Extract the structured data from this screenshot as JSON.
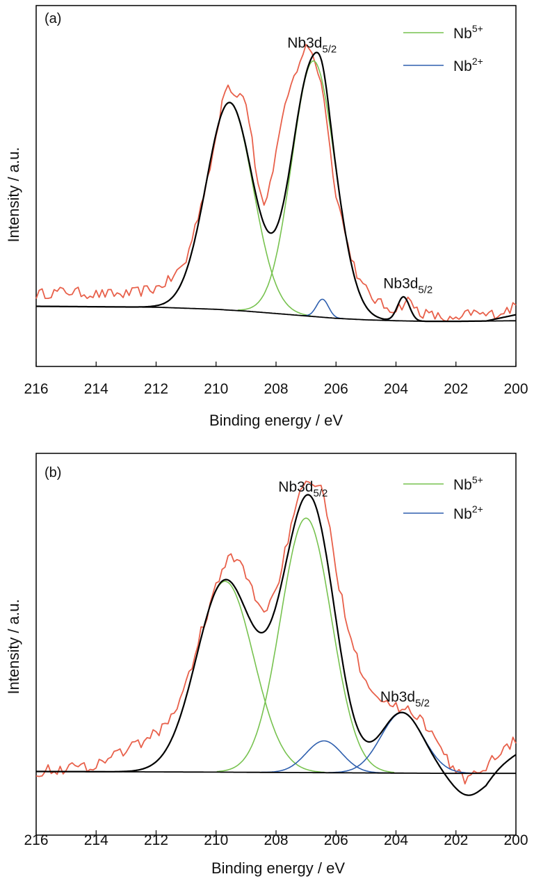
{
  "chart_data": [
    {
      "type": "line",
      "panel_label": "(a)",
      "xlabel": "Binding energy / eV",
      "ylabel": "Intensity / a.u.",
      "xlim": [
        216,
        200
      ],
      "x_reversed": true,
      "ylim": [
        -0.2,
        1.0
      ],
      "y_ticks_shown": false,
      "x_ticks": [
        216,
        214,
        212,
        210,
        208,
        206,
        204,
        202,
        200
      ],
      "grid": false,
      "legend": {
        "position": "top-right",
        "entries": [
          {
            "base": "Nb",
            "sup": "5+",
            "color": "#77c24f"
          },
          {
            "base": "Nb",
            "sup": "2+",
            "color": "#2e5fae"
          }
        ]
      },
      "annotations": [
        {
          "base": "Nb3d",
          "sub": "5/2",
          "x": 206.8,
          "y": 0.86
        },
        {
          "base": "Nb3d",
          "sub": "5/2",
          "x": 203.6,
          "y": 0.06
        }
      ],
      "background": {
        "x": [
          216,
          212,
          210,
          209,
          208,
          207,
          206,
          205,
          204,
          203,
          202,
          200
        ],
        "y": [
          0.0,
          -0.003,
          -0.01,
          -0.016,
          -0.024,
          -0.032,
          -0.04,
          -0.045,
          -0.048,
          -0.05,
          -0.05,
          -0.048
        ]
      },
      "peaks": [
        {
          "name": "Nb5+",
          "color": "#77c24f",
          "center": 209.55,
          "height": 0.69,
          "width": 0.78
        },
        {
          "name": "Nb5+",
          "color": "#77c24f",
          "center": 206.75,
          "height": 0.85,
          "width": 0.72
        },
        {
          "name": "Nb2+",
          "color": "#2e5fae",
          "center": 206.45,
          "height": 0.06,
          "width": 0.2
        },
        {
          "name": "Nb2+",
          "color": "#2e5fae",
          "center": 203.75,
          "height": 0.08,
          "width": 0.2
        }
      ],
      "experimental": {
        "color": "#e8604a",
        "noise": 0.018,
        "tail_rise": 0.02,
        "x": [
          216,
          215,
          214,
          213,
          212.5,
          212,
          211.5,
          211,
          210.5,
          210,
          209.8,
          209.6,
          209.4,
          209.2,
          209.0,
          208.8,
          208.6,
          208.4,
          208.2,
          208,
          207.6,
          207.2,
          207,
          206.8,
          206.6,
          206.4,
          206.2,
          206,
          205.6,
          205.2,
          204.8,
          204.4,
          204,
          203.6,
          203.2,
          202.8,
          202.4,
          202,
          201.5,
          201,
          200.5,
          200
        ],
        "y": [
          0.04,
          0.05,
          0.04,
          0.04,
          0.05,
          0.06,
          0.09,
          0.15,
          0.34,
          0.55,
          0.68,
          0.75,
          0.7,
          0.72,
          0.68,
          0.56,
          0.4,
          0.34,
          0.4,
          0.52,
          0.7,
          0.82,
          0.86,
          0.85,
          0.78,
          0.7,
          0.52,
          0.38,
          0.2,
          0.08,
          0.03,
          0.0,
          -0.01,
          0.02,
          -0.02,
          -0.03,
          -0.04,
          -0.05,
          -0.02,
          -0.03,
          -0.02,
          0.0
        ]
      }
    },
    {
      "type": "line",
      "panel_label": "(b)",
      "xlabel": "Binding energy / eV",
      "ylabel": "Intensity / a.u.",
      "xlim": [
        216,
        200
      ],
      "x_reversed": true,
      "ylim": [
        -0.2,
        1.0
      ],
      "y_ticks_shown": false,
      "x_ticks": [
        216,
        214,
        212,
        210,
        208,
        206,
        204,
        202,
        200
      ],
      "grid": false,
      "legend": {
        "position": "top-right",
        "entries": [
          {
            "base": "Nb",
            "sup": "5+",
            "color": "#77c24f"
          },
          {
            "base": "Nb",
            "sup": "2+",
            "color": "#2e5fae"
          }
        ]
      },
      "annotations": [
        {
          "base": "Nb3d",
          "sub": "5/2",
          "x": 207.1,
          "y": 0.88
        },
        {
          "base": "Nb3d",
          "sub": "5/2",
          "x": 203.7,
          "y": 0.22
        }
      ],
      "background": {
        "x": [
          216,
          210,
          206,
          204,
          202,
          200
        ],
        "y": [
          0.0,
          -0.002,
          -0.004,
          -0.005,
          -0.006,
          -0.006
        ]
      },
      "valley_dip": {
        "center": 201.6,
        "depth": 0.07,
        "width": 0.55
      },
      "peaks": [
        {
          "name": "Nb5+",
          "color": "#77c24f",
          "center": 209.7,
          "height": 0.6,
          "width": 0.95
        },
        {
          "name": "Nb5+",
          "color": "#77c24f",
          "center": 207.0,
          "height": 0.8,
          "width": 0.85
        },
        {
          "name": "Nb2+",
          "color": "#2e5fae",
          "center": 206.4,
          "height": 0.1,
          "width": 0.6
        },
        {
          "name": "Nb2+",
          "color": "#2e5fae",
          "center": 203.8,
          "height": 0.19,
          "width": 0.7
        }
      ],
      "experimental": {
        "color": "#e8604a",
        "noise": 0.018,
        "tail_rise": 0.06,
        "x": [
          216,
          215,
          214,
          213.5,
          213,
          212.5,
          212,
          211.5,
          211,
          210.5,
          210,
          209.6,
          209.2,
          208.8,
          208.4,
          208,
          207.6,
          207.2,
          206.8,
          206.4,
          206,
          205.6,
          205.2,
          204.8,
          204.4,
          204,
          203.6,
          203.2,
          202.8,
          202.4,
          202,
          201.6,
          201.2,
          200.8,
          200.4,
          200
        ],
        "y": [
          0.0,
          0.01,
          0.02,
          0.05,
          0.07,
          0.09,
          0.12,
          0.17,
          0.27,
          0.44,
          0.58,
          0.67,
          0.66,
          0.57,
          0.5,
          0.57,
          0.73,
          0.87,
          0.92,
          0.87,
          0.63,
          0.46,
          0.33,
          0.26,
          0.22,
          0.2,
          0.2,
          0.17,
          0.12,
          0.05,
          0.0,
          -0.03,
          0.0,
          0.04,
          0.07,
          0.1
        ]
      }
    }
  ]
}
